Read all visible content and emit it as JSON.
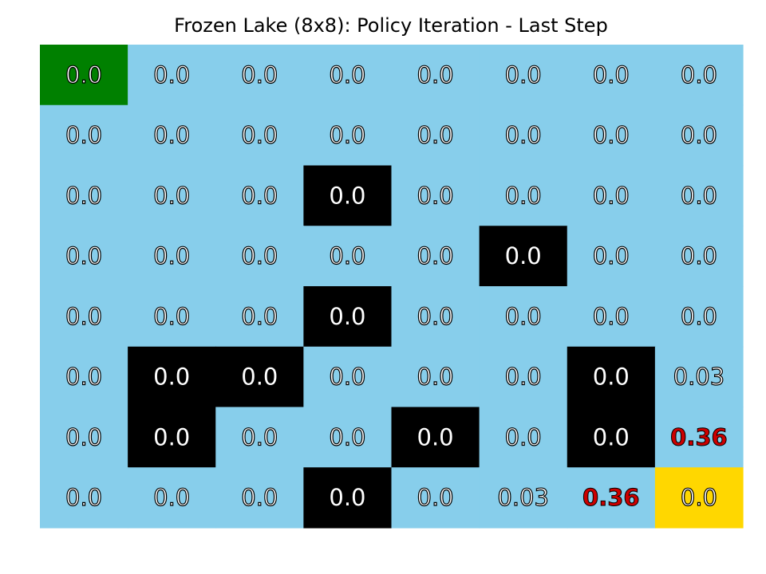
{
  "chart_data": {
    "type": "heatmap",
    "title": "Frozen Lake (8x8): Policy Iteration - Last Step",
    "rows": 8,
    "cols": 8,
    "values": [
      [
        "0.0",
        "0.0",
        "0.0",
        "0.0",
        "0.0",
        "0.0",
        "0.0",
        "0.0"
      ],
      [
        "0.0",
        "0.0",
        "0.0",
        "0.0",
        "0.0",
        "0.0",
        "0.0",
        "0.0"
      ],
      [
        "0.0",
        "0.0",
        "0.0",
        "0.0",
        "0.0",
        "0.0",
        "0.0",
        "0.0"
      ],
      [
        "0.0",
        "0.0",
        "0.0",
        "0.0",
        "0.0",
        "0.0",
        "0.0",
        "0.0"
      ],
      [
        "0.0",
        "0.0",
        "0.0",
        "0.0",
        "0.0",
        "0.0",
        "0.0",
        "0.0"
      ],
      [
        "0.0",
        "0.0",
        "0.0",
        "0.0",
        "0.0",
        "0.0",
        "0.0",
        "0.03"
      ],
      [
        "0.0",
        "0.0",
        "0.0",
        "0.0",
        "0.0",
        "0.0",
        "0.0",
        "0.36"
      ],
      [
        "0.0",
        "0.0",
        "0.0",
        "0.0",
        "0.0",
        "0.03",
        "0.36",
        "0.0"
      ]
    ],
    "cell_types": [
      [
        "start",
        "frozen",
        "frozen",
        "frozen",
        "frozen",
        "frozen",
        "frozen",
        "frozen"
      ],
      [
        "frozen",
        "frozen",
        "frozen",
        "frozen",
        "frozen",
        "frozen",
        "frozen",
        "frozen"
      ],
      [
        "frozen",
        "frozen",
        "frozen",
        "hole",
        "frozen",
        "frozen",
        "frozen",
        "frozen"
      ],
      [
        "frozen",
        "frozen",
        "frozen",
        "frozen",
        "frozen",
        "hole",
        "frozen",
        "frozen"
      ],
      [
        "frozen",
        "frozen",
        "frozen",
        "hole",
        "frozen",
        "frozen",
        "frozen",
        "frozen"
      ],
      [
        "frozen",
        "hole",
        "hole",
        "frozen",
        "frozen",
        "frozen",
        "hole",
        "frozen"
      ],
      [
        "frozen",
        "hole",
        "frozen",
        "frozen",
        "hole",
        "frozen",
        "hole",
        "frozen"
      ],
      [
        "frozen",
        "frozen",
        "frozen",
        "hole",
        "frozen",
        "frozen",
        "frozen",
        "goal"
      ]
    ],
    "highlighted": [
      [
        6,
        7
      ],
      [
        7,
        6
      ]
    ],
    "colors": {
      "start": "#008000",
      "frozen": "#87ceeb",
      "hole": "#000000",
      "goal": "#ffd700",
      "highlight_text": "#cc0000",
      "text_fill": "#ffffff",
      "text_outline": "#000000"
    },
    "grid": false
  }
}
